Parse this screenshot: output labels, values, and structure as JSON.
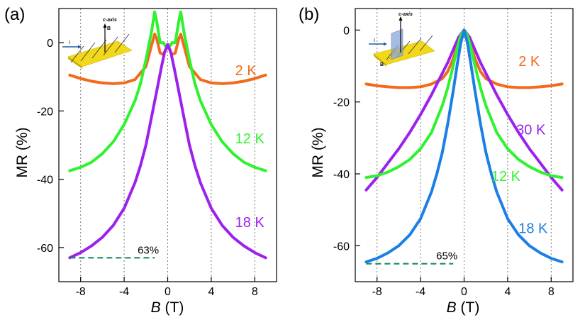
{
  "figure": {
    "panels": [
      {
        "panel_label": "(a)",
        "xlabel_var": "B",
        "xlabel_unit": " (T)",
        "ylabel": "MR (%)",
        "inset": {
          "axis_label": "c-axis",
          "current_label": "I",
          "field_label": "B"
        },
        "annotation": "63%"
      },
      {
        "panel_label": "(b)",
        "xlabel_var": "B",
        "xlabel_unit": " (T)",
        "ylabel": "MR (%)",
        "inset": {
          "axis_label": "c-axis",
          "current_label": "I",
          "field_label": "B"
        },
        "annotation": "65%"
      }
    ]
  },
  "chart_data": [
    {
      "type": "line",
      "title": "(a)",
      "xlabel": "B (T)",
      "ylabel": "MR (%)",
      "xlim": [
        -10,
        10
      ],
      "ylim": [
        -70,
        10
      ],
      "xticks": [
        -8,
        -4,
        0,
        4,
        8
      ],
      "xtick_labels": [
        "-8",
        "-4",
        "0",
        "4",
        "8"
      ],
      "yticks": [
        -60,
        -40,
        -20,
        0
      ],
      "ytick_labels": [
        "-60",
        "-40",
        "-20",
        "0"
      ],
      "vlines": [
        -8,
        -4,
        0,
        4,
        8
      ],
      "series": [
        {
          "name": "2 K",
          "color": "#f26b1d",
          "x": [
            -9,
            -8,
            -7,
            -6,
            -5,
            -4,
            -3,
            -2,
            -1.5,
            -1.2,
            -1,
            -0.7,
            -0.4,
            -0.2,
            0,
            0.2,
            0.4,
            0.7,
            1,
            1.2,
            1.5,
            2,
            3,
            4,
            5,
            6,
            7,
            8,
            9
          ],
          "y": [
            -9.5,
            -10.5,
            -11.3,
            -11.8,
            -12,
            -11.8,
            -10.8,
            -7,
            -1,
            2.5,
            1,
            -3,
            -3.5,
            -2,
            -1.5,
            -2,
            -3.5,
            -3,
            1,
            2.5,
            -1,
            -7,
            -10.8,
            -11.8,
            -12,
            -11.8,
            -11.3,
            -10.5,
            -9.5
          ]
        },
        {
          "name": "12 K",
          "color": "#2ef32e",
          "x": [
            -9,
            -8,
            -7,
            -6,
            -5,
            -4,
            -3,
            -2.5,
            -2,
            -1.5,
            -1.2,
            -1,
            -0.7,
            -0.4,
            -0.2,
            0,
            0.2,
            0.4,
            0.7,
            1,
            1.2,
            1.5,
            2,
            2.5,
            3,
            4,
            5,
            6,
            7,
            8,
            9
          ],
          "y": [
            -37.5,
            -36.5,
            -35,
            -32.5,
            -29,
            -24,
            -17,
            -12,
            -5,
            3,
            9,
            6,
            0,
            0,
            -1,
            -1.5,
            -1,
            0,
            0,
            6,
            9,
            3,
            -5,
            -12,
            -17,
            -24,
            -29,
            -32.5,
            -35,
            -36.5,
            -37.5
          ]
        },
        {
          "name": "18 K",
          "color": "#9b22ee",
          "x": [
            -9,
            -8,
            -7,
            -6,
            -5,
            -4,
            -3,
            -2.5,
            -2,
            -1.5,
            -1,
            -0.6,
            -0.3,
            0,
            0.3,
            0.6,
            1,
            1.5,
            2,
            2.5,
            3,
            4,
            5,
            6,
            7,
            8,
            9
          ],
          "y": [
            -63,
            -61.5,
            -59.5,
            -57,
            -53.5,
            -48.5,
            -41,
            -36,
            -30,
            -22,
            -14,
            -7.5,
            -3,
            -0.5,
            -3,
            -7.5,
            -14,
            -22,
            -30,
            -36,
            -41,
            -48.5,
            -53.5,
            -57,
            -59.5,
            -61.5,
            -63
          ]
        }
      ],
      "labels": [
        {
          "text": "2 K",
          "x": 6.2,
          "y": -9.5,
          "color": "#f26b1d"
        },
        {
          "text": "12 K",
          "x": 6.2,
          "y": -29.5,
          "color": "#2ef32e"
        },
        {
          "text": "18 K",
          "x": 6.2,
          "y": -54,
          "color": "#9b22ee"
        }
      ],
      "reference_line": {
        "x": [
          -9,
          -1.2
        ],
        "y": -63,
        "color": "#1a8a6a",
        "label": "63%"
      }
    },
    {
      "type": "line",
      "title": "(b)",
      "xlabel": "B (T)",
      "ylabel": "MR (%)",
      "xlim": [
        -10,
        10
      ],
      "ylim": [
        -70,
        6
      ],
      "xticks": [
        -8,
        -4,
        0,
        4,
        8
      ],
      "xtick_labels": [
        "-8",
        "-4",
        "0",
        "4",
        "8"
      ],
      "yticks": [
        -60,
        -40,
        -20,
        0
      ],
      "ytick_labels": [
        "-60",
        "-40",
        "-20",
        "0"
      ],
      "vlines": [
        -8,
        -4,
        0,
        4,
        8
      ],
      "series": [
        {
          "name": "2 K",
          "color": "#f26b1d",
          "x": [
            -9,
            -8,
            -7,
            -6,
            -5,
            -4,
            -3,
            -2,
            -1.5,
            -1,
            -0.6,
            -0.3,
            0,
            0.3,
            0.6,
            1,
            1.5,
            2,
            3,
            4,
            5,
            6,
            7,
            8,
            9
          ],
          "y": [
            -15,
            -15.5,
            -15.8,
            -16,
            -16,
            -15.8,
            -15,
            -13.5,
            -11.5,
            -8,
            -4,
            -1.2,
            0,
            -1.2,
            -4,
            -8,
            -11.5,
            -13.5,
            -15,
            -15.8,
            -16,
            -16,
            -15.8,
            -15.5,
            -15
          ]
        },
        {
          "name": "30 K",
          "color": "#9b22ee",
          "x": [
            -9,
            -8,
            -7,
            -6,
            -5,
            -4,
            -3,
            -2,
            -1.5,
            -1,
            -0.5,
            0,
            0.5,
            1,
            1.5,
            2,
            3,
            4,
            5,
            6,
            7,
            8,
            9
          ],
          "y": [
            -44.5,
            -41,
            -37,
            -33,
            -28.5,
            -23.5,
            -18,
            -12,
            -9,
            -5.5,
            -2,
            0,
            -2,
            -5.5,
            -9,
            -12,
            -18,
            -23.5,
            -28.5,
            -33,
            -37,
            -41,
            -44.5
          ]
        },
        {
          "name": "12 K",
          "color": "#2ef32e",
          "x": [
            -9,
            -8,
            -7,
            -6,
            -5,
            -4,
            -3,
            -2,
            -1.5,
            -1,
            -0.6,
            -0.3,
            0,
            0.3,
            0.6,
            1,
            1.5,
            2,
            3,
            4,
            5,
            6,
            7,
            8,
            9
          ],
          "y": [
            -41,
            -40.5,
            -39.5,
            -38,
            -36,
            -33,
            -28.5,
            -21,
            -16,
            -10,
            -4.5,
            -1.5,
            0,
            -1.5,
            -4.5,
            -10,
            -16,
            -21,
            -28.5,
            -33,
            -36,
            -38,
            -39.5,
            -40.5,
            -41
          ]
        },
        {
          "name": "18 K",
          "color": "#1b7fe6",
          "x": [
            -9,
            -8,
            -7,
            -6,
            -5,
            -4,
            -3,
            -2.5,
            -2,
            -1.5,
            -1,
            -0.6,
            -0.3,
            0,
            0.3,
            0.6,
            1,
            1.5,
            2,
            2.5,
            3,
            4,
            5,
            6,
            7,
            8,
            9
          ],
          "y": [
            -64.5,
            -63.5,
            -62,
            -60,
            -57,
            -52.5,
            -45,
            -40,
            -34,
            -26,
            -17,
            -9,
            -3.5,
            0,
            -3.5,
            -9,
            -17,
            -26,
            -34,
            -40,
            -45,
            -52.5,
            -57,
            -60,
            -62,
            -63.5,
            -64.5
          ]
        }
      ],
      "labels": [
        {
          "text": "2 K",
          "x": 5.0,
          "y": -10,
          "color": "#f26b1d"
        },
        {
          "text": "30 K",
          "x": 4.8,
          "y": -29,
          "color": "#9b22ee"
        },
        {
          "text": "12 K",
          "x": 2.5,
          "y": -42,
          "color": "#2ef32e"
        },
        {
          "text": "18 K",
          "x": 5.0,
          "y": -56.5,
          "color": "#1b7fe6"
        }
      ],
      "reference_line": {
        "x": [
          -9,
          -1.0
        ],
        "y": -65,
        "color": "#1a8a6a",
        "label": "65%"
      }
    }
  ]
}
